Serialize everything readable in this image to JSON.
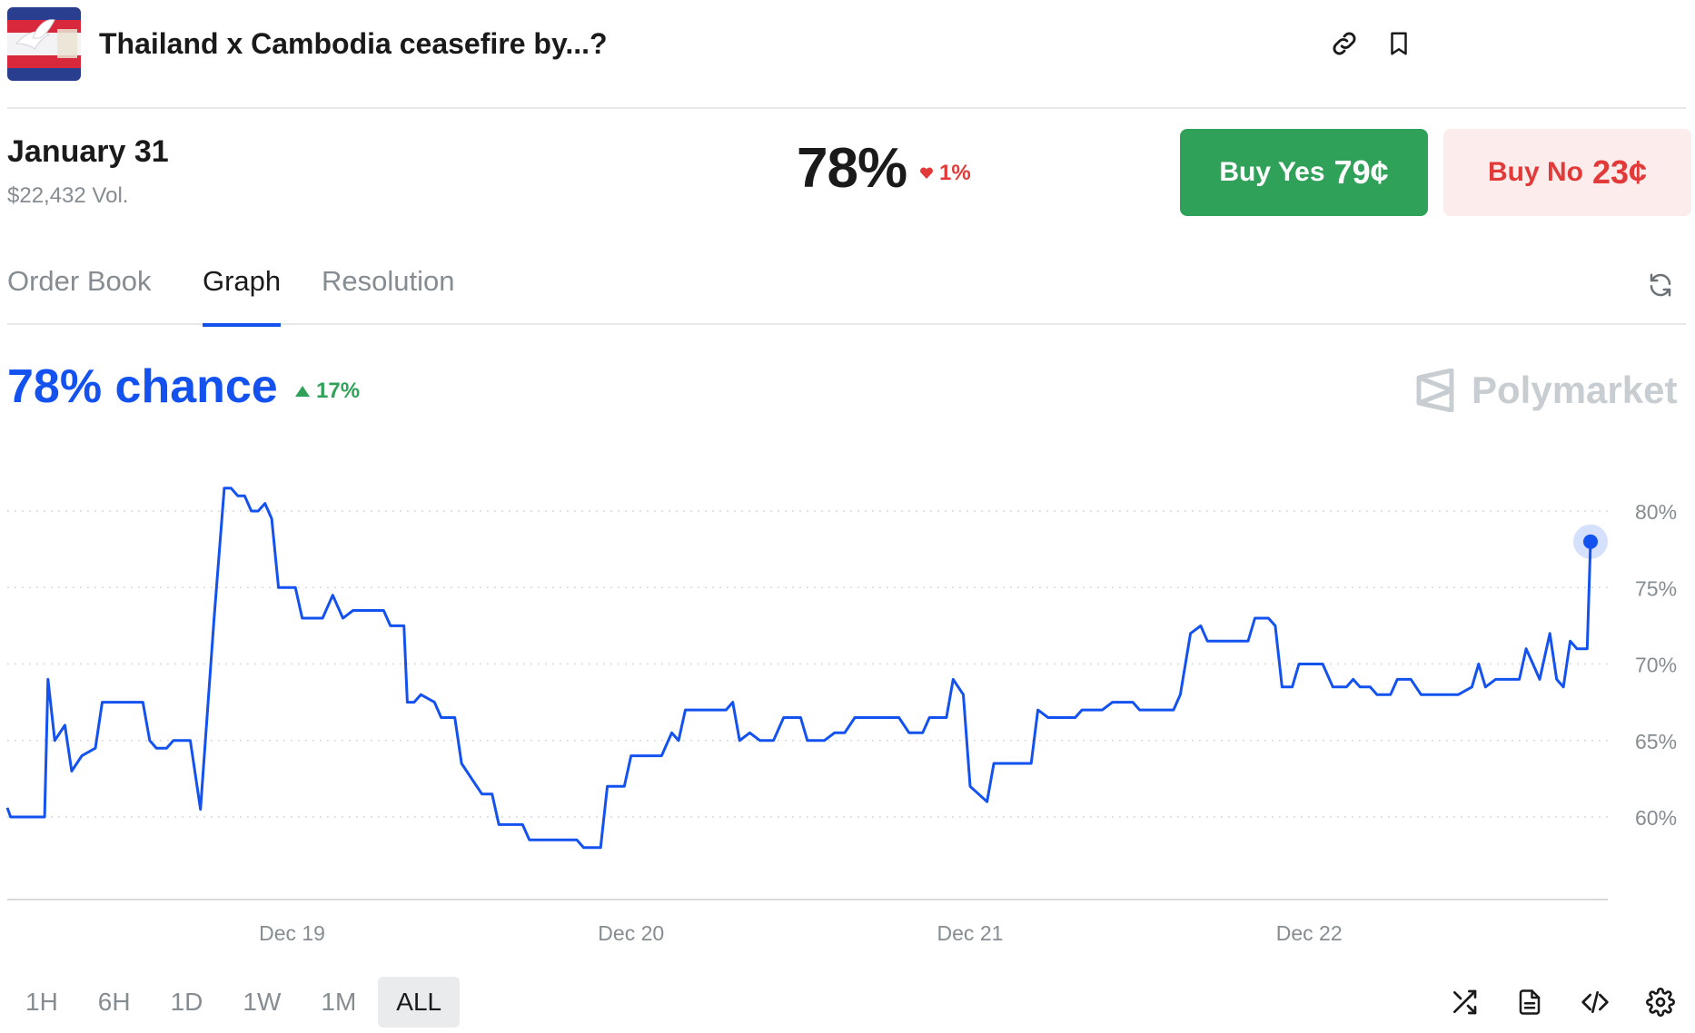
{
  "header": {
    "title": "Thailand x Cambodia ceasefire by...?",
    "icons": [
      "link-icon",
      "bookmark-icon"
    ]
  },
  "outcome": {
    "name": "January 31",
    "volume": "$22,432 Vol.",
    "probability": "78%",
    "change": "1%",
    "change_direction": "down"
  },
  "buttons": {
    "yes_label": "Buy Yes",
    "yes_price": "79¢",
    "no_label": "Buy No",
    "no_price": "23¢"
  },
  "tabs": [
    {
      "label": "Order Book",
      "active": false
    },
    {
      "label": "Graph",
      "active": true
    },
    {
      "label": "Resolution",
      "active": false
    }
  ],
  "graph": {
    "chance_label": "78% chance",
    "change": "17%",
    "change_direction": "up",
    "brand": "Polymarket"
  },
  "chart_data": {
    "type": "line",
    "xlabel": "",
    "ylabel": "",
    "x_ticks": [
      "Dec 19",
      "Dec 20",
      "Dec 21",
      "Dec 22"
    ],
    "y_ticks": [
      "60%",
      "65%",
      "70%",
      "75%",
      "80%"
    ],
    "ylim": [
      55,
      82
    ],
    "x_domain": [
      18.16,
      22.83
    ],
    "grid": "horizontal dotted",
    "line_color": "#1452f0",
    "series": [
      {
        "name": "",
        "points": [
          [
            18.16,
            60.6
          ],
          [
            18.17,
            60.0
          ],
          [
            18.27,
            60.0
          ],
          [
            18.28,
            69.0
          ],
          [
            18.3,
            65.0
          ],
          [
            18.33,
            66.0
          ],
          [
            18.35,
            63.0
          ],
          [
            18.38,
            64.0
          ],
          [
            18.42,
            64.5
          ],
          [
            18.44,
            67.5
          ],
          [
            18.56,
            67.5
          ],
          [
            18.58,
            65.0
          ],
          [
            18.6,
            64.5
          ],
          [
            18.63,
            64.5
          ],
          [
            18.65,
            65.0
          ],
          [
            18.7,
            65.0
          ],
          [
            18.73,
            60.5
          ],
          [
            18.77,
            73.0
          ],
          [
            18.8,
            81.5
          ],
          [
            18.82,
            81.5
          ],
          [
            18.84,
            81.0
          ],
          [
            18.86,
            81.0
          ],
          [
            18.88,
            80.0
          ],
          [
            18.9,
            80.0
          ],
          [
            18.92,
            80.5
          ],
          [
            18.94,
            79.5
          ],
          [
            18.96,
            75.0
          ],
          [
            19.01,
            75.0
          ],
          [
            19.03,
            73.0
          ],
          [
            19.09,
            73.0
          ],
          [
            19.12,
            74.5
          ],
          [
            19.15,
            73.0
          ],
          [
            19.18,
            73.5
          ],
          [
            19.27,
            73.5
          ],
          [
            19.29,
            72.5
          ],
          [
            19.33,
            72.5
          ],
          [
            19.34,
            67.5
          ],
          [
            19.36,
            67.5
          ],
          [
            19.38,
            68.0
          ],
          [
            19.42,
            67.5
          ],
          [
            19.44,
            66.5
          ],
          [
            19.48,
            66.5
          ],
          [
            19.5,
            63.5
          ],
          [
            19.53,
            62.5
          ],
          [
            19.56,
            61.5
          ],
          [
            19.59,
            61.5
          ],
          [
            19.61,
            59.5
          ],
          [
            19.68,
            59.5
          ],
          [
            19.7,
            58.5
          ],
          [
            19.84,
            58.5
          ],
          [
            19.86,
            58.0
          ],
          [
            19.91,
            58.0
          ],
          [
            19.93,
            62.0
          ],
          [
            19.98,
            62.0
          ],
          [
            20.0,
            64.0
          ],
          [
            20.09,
            64.0
          ],
          [
            20.12,
            65.5
          ],
          [
            20.14,
            65.0
          ],
          [
            20.16,
            67.0
          ],
          [
            20.28,
            67.0
          ],
          [
            20.3,
            67.5
          ],
          [
            20.32,
            65.0
          ],
          [
            20.35,
            65.5
          ],
          [
            20.38,
            65.0
          ],
          [
            20.42,
            65.0
          ],
          [
            20.45,
            66.5
          ],
          [
            20.5,
            66.5
          ],
          [
            20.52,
            65.0
          ],
          [
            20.57,
            65.0
          ],
          [
            20.6,
            65.5
          ],
          [
            20.63,
            65.5
          ],
          [
            20.66,
            66.5
          ],
          [
            20.79,
            66.5
          ],
          [
            20.82,
            65.5
          ],
          [
            20.86,
            65.5
          ],
          [
            20.88,
            66.5
          ],
          [
            20.93,
            66.5
          ],
          [
            20.95,
            69.0
          ],
          [
            20.98,
            68.0
          ],
          [
            21.0,
            62.0
          ],
          [
            21.05,
            61.0
          ],
          [
            21.07,
            63.5
          ],
          [
            21.18,
            63.5
          ],
          [
            21.2,
            67.0
          ],
          [
            21.23,
            66.5
          ],
          [
            21.31,
            66.5
          ],
          [
            21.33,
            67.0
          ],
          [
            21.39,
            67.0
          ],
          [
            21.42,
            67.5
          ],
          [
            21.48,
            67.5
          ],
          [
            21.5,
            67.0
          ],
          [
            21.6,
            67.0
          ],
          [
            21.62,
            68.0
          ],
          [
            21.65,
            72.0
          ],
          [
            21.68,
            72.5
          ],
          [
            21.7,
            71.5
          ],
          [
            21.82,
            71.5
          ],
          [
            21.84,
            73.0
          ],
          [
            21.88,
            73.0
          ],
          [
            21.9,
            72.5
          ],
          [
            21.92,
            68.5
          ],
          [
            21.95,
            68.5
          ],
          [
            21.97,
            70.0
          ],
          [
            22.04,
            70.0
          ],
          [
            22.07,
            68.5
          ],
          [
            22.11,
            68.5
          ],
          [
            22.13,
            69.0
          ],
          [
            22.15,
            68.5
          ],
          [
            22.18,
            68.5
          ],
          [
            22.2,
            68.0
          ],
          [
            22.24,
            68.0
          ],
          [
            22.26,
            69.0
          ],
          [
            22.3,
            69.0
          ],
          [
            22.33,
            68.0
          ],
          [
            22.44,
            68.0
          ],
          [
            22.48,
            68.5
          ],
          [
            22.5,
            70.0
          ],
          [
            22.52,
            68.5
          ],
          [
            22.55,
            69.0
          ],
          [
            22.62,
            69.0
          ],
          [
            22.64,
            71.0
          ],
          [
            22.66,
            70.0
          ],
          [
            22.68,
            69.0
          ],
          [
            22.71,
            72.0
          ],
          [
            22.73,
            69.0
          ],
          [
            22.75,
            68.5
          ],
          [
            22.77,
            71.5
          ],
          [
            22.79,
            71.0
          ],
          [
            22.82,
            71.0
          ],
          [
            22.83,
            78.0
          ]
        ]
      }
    ]
  },
  "ranges": [
    {
      "label": "1H",
      "active": false
    },
    {
      "label": "6H",
      "active": false
    },
    {
      "label": "1D",
      "active": false
    },
    {
      "label": "1W",
      "active": false
    },
    {
      "label": "1M",
      "active": false
    },
    {
      "label": "ALL",
      "active": true
    }
  ],
  "toolbar_icons": [
    "shuffle-icon",
    "document-icon",
    "code-icon",
    "settings-icon"
  ]
}
